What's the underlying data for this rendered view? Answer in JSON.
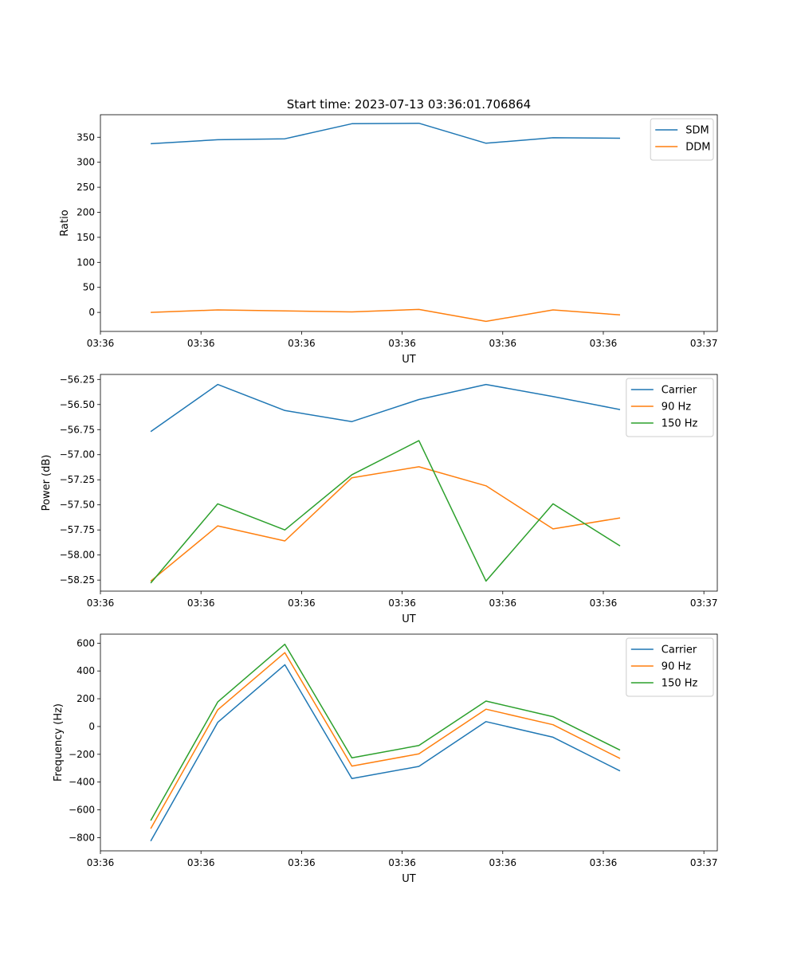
{
  "title": "Start time: 2023-07-13 03:36:01.706864",
  "colors": {
    "blue": "#1f77b4",
    "orange": "#ff7f0e",
    "green": "#2ca02c"
  },
  "chart_data": [
    {
      "type": "line",
      "title": "Start time: 2023-07-13 03:36:01.706864",
      "xlabel": "UT",
      "ylabel": "Ratio",
      "x": [
        0,
        1,
        2,
        3,
        4,
        5,
        6,
        7
      ],
      "xlim": [
        -0.75,
        8.45
      ],
      "xticks": [
        -0.75,
        0.75,
        2.25,
        3.75,
        5.25,
        6.75,
        8.25
      ],
      "xticklabels": [
        "03:36",
        "03:36",
        "03:36",
        "03:36",
        "03:36",
        "03:36",
        "03:37"
      ],
      "ylim": [
        -38,
        395
      ],
      "yticks": [
        0,
        50,
        100,
        150,
        200,
        250,
        300,
        350
      ],
      "yticklabels": [
        "0",
        "50",
        "100",
        "150",
        "200",
        "250",
        "300",
        "350"
      ],
      "legend": "top-right",
      "series": [
        {
          "name": "SDM",
          "color": "#1f77b4",
          "values": [
            337,
            345,
            347,
            377,
            378,
            338,
            349,
            348
          ]
        },
        {
          "name": "DDM",
          "color": "#ff7f0e",
          "values": [
            0,
            5,
            3,
            1,
            6,
            -18,
            5,
            -5
          ]
        }
      ]
    },
    {
      "type": "line",
      "xlabel": "UT",
      "ylabel": "Power (dB)",
      "x": [
        0,
        1,
        2,
        3,
        4,
        5,
        6,
        7
      ],
      "xlim": [
        -0.75,
        8.45
      ],
      "xticks": [
        -0.75,
        0.75,
        2.25,
        3.75,
        5.25,
        6.75,
        8.25
      ],
      "xticklabels": [
        "03:36",
        "03:36",
        "03:36",
        "03:36",
        "03:36",
        "03:36",
        "03:37"
      ],
      "ylim": [
        -58.36,
        -56.2
      ],
      "yticks": [
        -58.25,
        -58.0,
        -57.75,
        -57.5,
        -57.25,
        -57.0,
        -56.75,
        -56.5,
        -56.25
      ],
      "yticklabels": [
        "−58.25",
        "−58.00",
        "−57.75",
        "−57.50",
        "−57.25",
        "−57.00",
        "−56.75",
        "−56.50",
        "−56.25"
      ],
      "legend": "top-right",
      "series": [
        {
          "name": "Carrier",
          "color": "#1f77b4",
          "values": [
            -56.77,
            -56.3,
            -56.56,
            -56.67,
            -56.45,
            -56.3,
            -56.42,
            -56.55
          ]
        },
        {
          "name": "90 Hz",
          "color": "#ff7f0e",
          "values": [
            -58.26,
            -57.71,
            -57.86,
            -57.23,
            -57.12,
            -57.31,
            -57.74,
            -57.63
          ]
        },
        {
          "name": "150 Hz",
          "color": "#2ca02c",
          "values": [
            -58.28,
            -57.49,
            -57.75,
            -57.2,
            -56.86,
            -58.26,
            -57.49,
            -57.91
          ]
        }
      ]
    },
    {
      "type": "line",
      "xlabel": "UT",
      "ylabel": "Frequency (Hz)",
      "x": [
        0,
        1,
        2,
        3,
        4,
        5,
        6,
        7
      ],
      "xlim": [
        -0.75,
        8.45
      ],
      "xticks": [
        -0.75,
        0.75,
        2.25,
        3.75,
        5.25,
        6.75,
        8.25
      ],
      "xticklabels": [
        "03:36",
        "03:36",
        "03:36",
        "03:36",
        "03:36",
        "03:36",
        "03:37"
      ],
      "ylim": [
        -895,
        665
      ],
      "yticks": [
        -800,
        -600,
        -400,
        -200,
        0,
        200,
        400,
        600
      ],
      "yticklabels": [
        "−800",
        "−600",
        "−400",
        "−200",
        "0",
        "200",
        "400",
        "600"
      ],
      "legend": "top-right",
      "series": [
        {
          "name": "Carrier",
          "color": "#1f77b4",
          "values": [
            -825,
            30,
            445,
            -375,
            -287,
            35,
            -77,
            -320
          ]
        },
        {
          "name": "90 Hz",
          "color": "#ff7f0e",
          "values": [
            -735,
            120,
            532,
            -285,
            -197,
            125,
            13,
            -230
          ]
        },
        {
          "name": "150 Hz",
          "color": "#2ca02c",
          "values": [
            -677,
            177,
            592,
            -225,
            -137,
            183,
            71,
            -170
          ]
        }
      ]
    }
  ]
}
